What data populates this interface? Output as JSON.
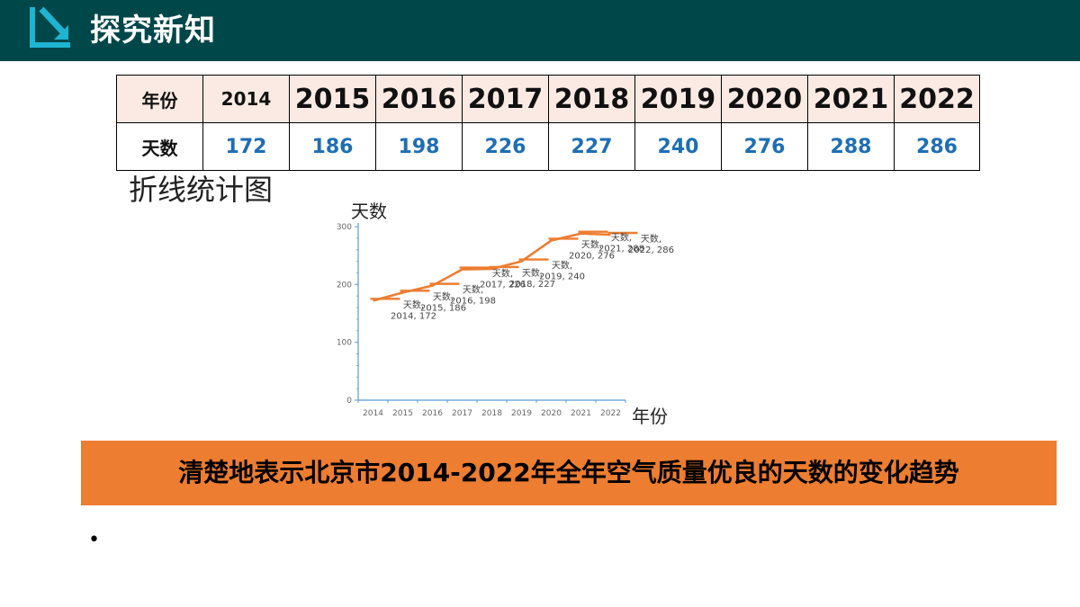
{
  "header": {
    "title": "探究新知"
  },
  "table": {
    "row_year_header": "年份",
    "row_days_header": "天数",
    "years": [
      "2014",
      "2015",
      "2016",
      "2017",
      "2018",
      "2019",
      "2020",
      "2021",
      "2022"
    ],
    "days": [
      "172",
      "186",
      "198",
      "226",
      "227",
      "240",
      "276",
      "288",
      "286"
    ]
  },
  "chart_heading": "折线统计图",
  "chart_data": {
    "type": "line",
    "ylabel": "天数",
    "xlabel": "年份",
    "ylim": [
      0,
      300
    ],
    "yticks": [
      "0",
      "100",
      "200",
      "300"
    ],
    "categories": [
      "2014",
      "2015",
      "2016",
      "2017",
      "2018",
      "2019",
      "2020",
      "2021",
      "2022"
    ],
    "series": [
      {
        "name": "天数",
        "values": [
          172,
          186,
          198,
          226,
          227,
          240,
          276,
          288,
          286
        ]
      }
    ],
    "data_labels": [
      "天数, 2014, 172",
      "天数, 2015, 186",
      "天数, 2016, 198",
      "天数, 2017, 226",
      "天数, 2018, 227",
      "天数, 2019, 240",
      "天数, 2020, 276",
      "天数, 2021, 288",
      "天数, 2022, 286"
    ],
    "line_color": "#ed7d31",
    "grid": false
  },
  "banner": {
    "text": "清楚地表示北京市2014-2022年全年空气质量优良的天数的变化趋势"
  },
  "bullet": "•",
  "colors": {
    "header_bg": "#00474a",
    "accent": "#1eb4d2",
    "banner_bg": "#ed7d31",
    "days_text": "#1e6eb4"
  }
}
